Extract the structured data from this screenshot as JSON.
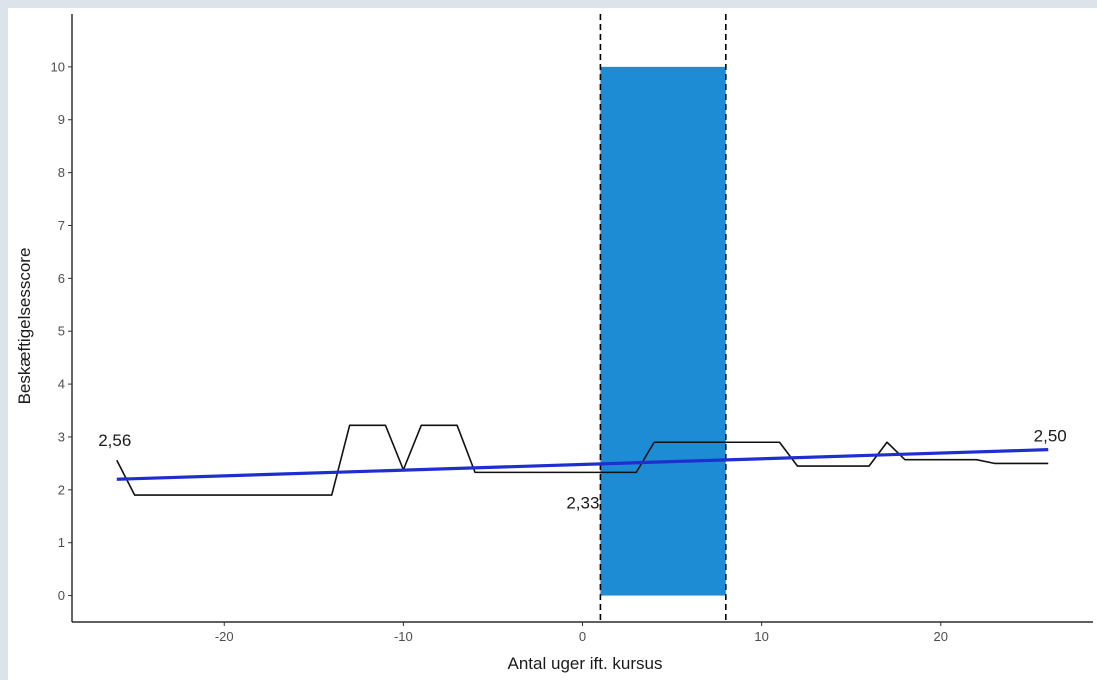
{
  "chart_data": {
    "type": "line",
    "xlabel": "Antal uger ift. kursus",
    "ylabel": "Beskæftigelsesscore",
    "xlim": [
      -28.5,
      28.5
    ],
    "ylim": [
      -0.5,
      11
    ],
    "x_ticks": [
      -20,
      -10,
      0,
      10,
      20
    ],
    "x_tick_labels": [
      "-20",
      "-10",
      "0",
      "10",
      "20"
    ],
    "y_ticks": [
      0,
      1,
      2,
      3,
      4,
      5,
      6,
      7,
      8,
      9,
      10
    ],
    "y_tick_labels": [
      "0",
      "1",
      "2",
      "3",
      "4",
      "5",
      "6",
      "7",
      "8",
      "9",
      "10"
    ],
    "grid": false,
    "course_period": {
      "start": 1,
      "end": 8,
      "ymin": 0,
      "ymax": 10,
      "color": "#1e8cd5",
      "dashed_lines": true
    },
    "series": [
      {
        "style": "line",
        "color": "#111111",
        "x": [
          -26,
          -25,
          -24,
          -23,
          -22,
          -21,
          -20,
          -19,
          -18,
          -17,
          -16,
          -15,
          -14,
          -13,
          -12,
          -11,
          -10,
          -9,
          -8,
          -7,
          -6,
          -5,
          -4,
          -3,
          -2,
          -1,
          0,
          1,
          2,
          3,
          4,
          5,
          6,
          7,
          8,
          9,
          10,
          11,
          12,
          13,
          14,
          15,
          16,
          17,
          18,
          19,
          20,
          21,
          22,
          23,
          24,
          25,
          26
        ],
        "y": [
          2.56,
          1.9,
          1.9,
          1.9,
          1.9,
          1.9,
          1.9,
          1.9,
          1.9,
          1.9,
          1.9,
          1.9,
          1.9,
          3.22,
          3.22,
          3.22,
          2.38,
          3.22,
          3.22,
          3.22,
          2.33,
          2.33,
          2.33,
          2.33,
          2.33,
          2.33,
          2.33,
          2.33,
          2.33,
          2.33,
          2.9,
          2.9,
          2.9,
          2.9,
          2.9,
          2.9,
          2.9,
          2.9,
          2.45,
          2.45,
          2.45,
          2.45,
          2.45,
          2.9,
          2.57,
          2.57,
          2.57,
          2.57,
          2.57,
          2.5,
          2.5,
          2.5,
          2.5
        ]
      },
      {
        "style": "trend",
        "color": "#1f2ecf",
        "x": [
          -26,
          26
        ],
        "y": [
          2.2,
          2.76
        ]
      }
    ],
    "annotations": [
      {
        "text": "2,56",
        "x": -26,
        "y": 2.56
      },
      {
        "text": "2,33",
        "x": 1,
        "y": 2.33
      },
      {
        "text": "2,50",
        "x": 26,
        "y": 2.5
      }
    ]
  }
}
